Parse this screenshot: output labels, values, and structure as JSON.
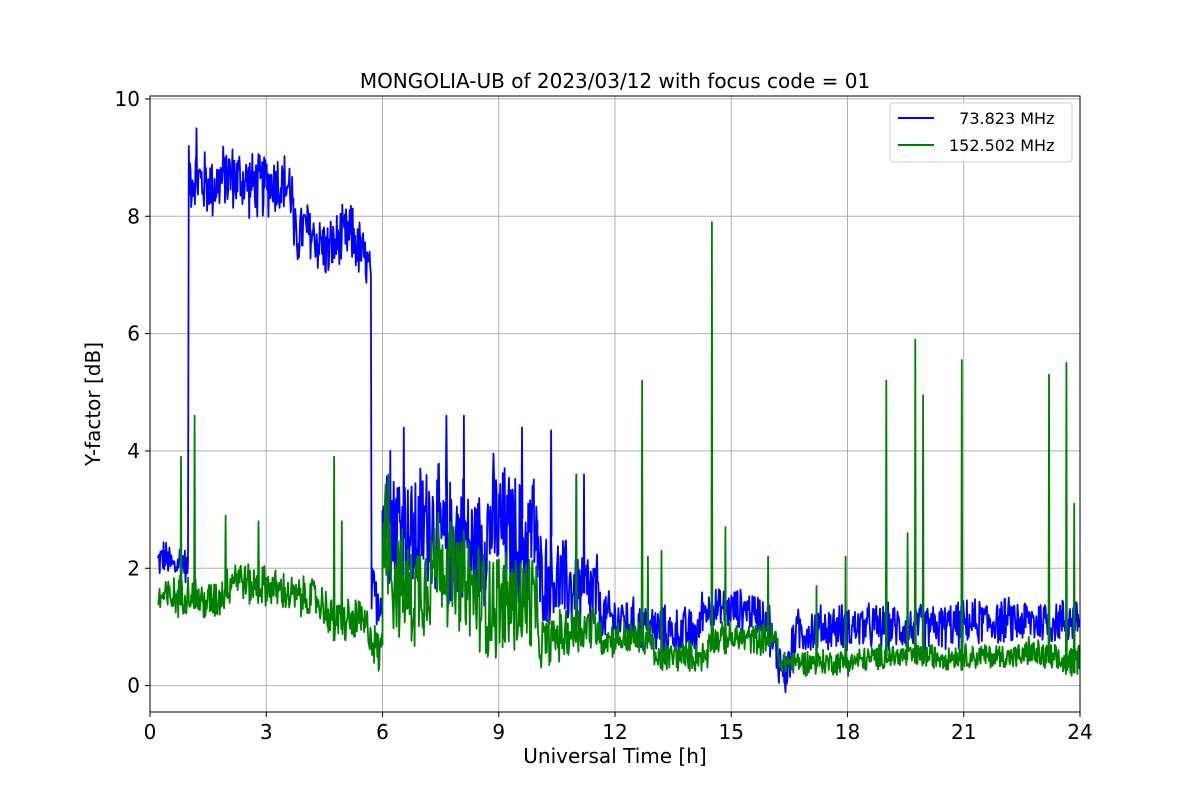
{
  "chart_data": {
    "type": "line",
    "title": "MONGOLIA-UB of 2023/03/12 with focus code = 01",
    "xlabel": "Universal Time [h]",
    "ylabel": "Y-factor [dB]",
    "xlim": [
      0,
      24
    ],
    "ylim": [
      -0.45,
      10.05
    ],
    "xticks": [
      0,
      3,
      6,
      9,
      12,
      15,
      18,
      21,
      24
    ],
    "yticks": [
      0,
      2,
      4,
      6,
      8,
      10
    ],
    "grid": true,
    "legend": "top-right",
    "series": [
      {
        "name": "  73.823 MHz",
        "color": "#0000ff",
        "segments": [
          {
            "x": [
              0.2,
              0.35,
              0.5,
              0.65,
              0.8,
              0.95,
              0.98
            ],
            "y": [
              2.1,
              2.2,
              2.1,
              2.0,
              2.2,
              2.0,
              2.1
            ],
            "noise": 0.35
          },
          {
            "x": [
              1.0,
              1.3,
              1.6,
              2.0,
              2.4,
              2.8,
              3.2,
              3.6,
              3.7
            ],
            "y": [
              8.7,
              8.6,
              8.5,
              8.7,
              8.6,
              8.5,
              8.6,
              8.5,
              8.3
            ],
            "noise": 0.65
          },
          {
            "x": [
              3.7,
              4.0,
              4.3,
              4.6,
              4.9,
              5.2,
              5.5,
              5.7
            ],
            "y": [
              7.6,
              7.8,
              7.6,
              7.4,
              7.6,
              7.7,
              7.3,
              7.0
            ],
            "noise": 0.6
          },
          {
            "x": [
              5.72,
              5.85,
              6.0
            ],
            "y": [
              1.5,
              1.5,
              1.6
            ],
            "noise": 0.6
          },
          {
            "x": [
              6.0,
              6.4,
              6.8,
              7.2,
              7.6,
              8.0,
              8.4,
              8.8,
              9.2,
              9.6,
              10.0
            ],
            "y": [
              3.0,
              2.8,
              2.5,
              2.9,
              2.4,
              2.6,
              2.2,
              2.8,
              2.6,
              2.4,
              2.8
            ],
            "noise": 1.3
          },
          {
            "x": [
              10.0,
              10.4,
              10.8,
              11.2,
              11.6
            ],
            "y": [
              1.9,
              1.8,
              1.7,
              1.6,
              1.5
            ],
            "noise": 0.9
          },
          {
            "x": [
              11.6,
              12.2,
              12.8,
              13.4,
              14.0,
              14.2
            ],
            "y": [
              1.2,
              1.1,
              1.0,
              0.9,
              0.9,
              0.9
            ],
            "noise": 0.5
          },
          {
            "x": [
              14.2,
              14.6,
              15.0,
              15.4,
              15.8,
              16.0
            ],
            "y": [
              1.3,
              1.3,
              1.3,
              1.3,
              1.2,
              1.1
            ],
            "noise": 0.4
          },
          {
            "x": [
              16.0,
              16.2,
              16.4,
              16.6
            ],
            "y": [
              0.8,
              0.5,
              0.2,
              0.6
            ],
            "noise": 0.5
          },
          {
            "x": [
              16.6,
              17.5,
              18.5,
              19.5,
              20.5,
              21.5,
              22.5,
              23.5,
              24.0
            ],
            "y": [
              0.9,
              1.0,
              1.0,
              1.0,
              1.0,
              1.1,
              1.1,
              1.1,
              1.1
            ],
            "noise": 0.45
          }
        ],
        "spikes": [
          {
            "x": 1.2,
            "y": 9.5
          },
          {
            "x": 6.2,
            "y": 4.0
          },
          {
            "x": 6.55,
            "y": 4.4
          },
          {
            "x": 7.65,
            "y": 4.6
          },
          {
            "x": 8.1,
            "y": 4.6
          },
          {
            "x": 9.6,
            "y": 4.4
          },
          {
            "x": 10.35,
            "y": 4.35
          },
          {
            "x": 11.0,
            "y": 3.6
          },
          {
            "x": 11.2,
            "y": 3.6
          }
        ]
      },
      {
        "name": "152.502 MHz",
        "color": "#008000",
        "segments": [
          {
            "x": [
              0.2,
              0.6,
              1.0,
              1.4,
              1.8,
              2.2,
              2.6,
              3.0,
              3.4,
              3.8,
              4.2,
              4.6
            ],
            "y": [
              1.5,
              1.5,
              1.6,
              1.4,
              1.5,
              1.9,
              1.7,
              1.7,
              1.6,
              1.5,
              1.5,
              1.3
            ],
            "noise": 0.4
          },
          {
            "x": [
              4.6,
              5.0,
              5.4,
              5.7,
              5.9,
              6.0
            ],
            "y": [
              1.1,
              1.1,
              1.1,
              0.9,
              0.5,
              0.7
            ],
            "noise": 0.45
          },
          {
            "x": [
              6.0,
              6.3,
              6.7,
              7.1,
              7.5,
              7.9,
              8.3,
              8.7,
              9.1,
              9.5,
              9.9,
              10.0
            ],
            "y": [
              3.0,
              1.8,
              1.5,
              1.8,
              2.2,
              1.8,
              1.6,
              1.4,
              1.4,
              1.4,
              1.4,
              1.3
            ],
            "noise": 1.1
          },
          {
            "x": [
              10.0,
              10.4,
              10.8,
              11.2,
              11.6
            ],
            "y": [
              0.7,
              0.8,
              0.9,
              1.0,
              1.0
            ],
            "noise": 0.5
          },
          {
            "x": [
              11.6,
              12.0,
              12.4,
              12.8,
              13.0
            ],
            "y": [
              0.8,
              0.8,
              0.8,
              0.8,
              0.8
            ],
            "noise": 0.35
          },
          {
            "x": [
              13.0,
              13.4,
              13.8,
              14.2,
              14.4
            ],
            "y": [
              0.4,
              0.5,
              0.5,
              0.5,
              0.5
            ],
            "noise": 0.3
          },
          {
            "x": [
              14.4,
              14.8,
              15.2,
              15.6,
              16.0,
              16.2
            ],
            "y": [
              0.8,
              0.8,
              0.8,
              0.8,
              0.8,
              0.8
            ],
            "noise": 0.3
          },
          {
            "x": [
              16.2,
              17.0,
              18.0,
              19.0,
              20.0,
              21.0,
              22.0,
              22.6
            ],
            "y": [
              0.4,
              0.4,
              0.4,
              0.5,
              0.5,
              0.5,
              0.5,
              0.5
            ],
            "noise": 0.25
          },
          {
            "x": [
              22.6,
              23.0,
              23.4,
              23.8,
              24.0
            ],
            "y": [
              0.6,
              0.5,
              0.4,
              0.4,
              0.5
            ],
            "noise": 0.3
          }
        ],
        "spikes": [
          {
            "x": 0.8,
            "y": 3.9
          },
          {
            "x": 1.15,
            "y": 4.6
          },
          {
            "x": 1.95,
            "y": 2.9
          },
          {
            "x": 2.8,
            "y": 2.8
          },
          {
            "x": 4.75,
            "y": 3.9
          },
          {
            "x": 4.95,
            "y": 2.8
          },
          {
            "x": 6.15,
            "y": 3.6
          },
          {
            "x": 11.0,
            "y": 3.6
          },
          {
            "x": 12.7,
            "y": 5.2
          },
          {
            "x": 12.85,
            "y": 2.2
          },
          {
            "x": 13.2,
            "y": 2.3
          },
          {
            "x": 14.5,
            "y": 7.9
          },
          {
            "x": 14.85,
            "y": 2.7
          },
          {
            "x": 15.95,
            "y": 2.2
          },
          {
            "x": 17.2,
            "y": 1.7
          },
          {
            "x": 17.95,
            "y": 2.2
          },
          {
            "x": 19.0,
            "y": 5.2
          },
          {
            "x": 19.55,
            "y": 2.6
          },
          {
            "x": 19.75,
            "y": 5.9
          },
          {
            "x": 19.95,
            "y": 4.95
          },
          {
            "x": 20.95,
            "y": 5.55
          },
          {
            "x": 23.2,
            "y": 5.3
          },
          {
            "x": 23.65,
            "y": 5.5
          },
          {
            "x": 23.85,
            "y": 3.1
          }
        ]
      }
    ]
  }
}
